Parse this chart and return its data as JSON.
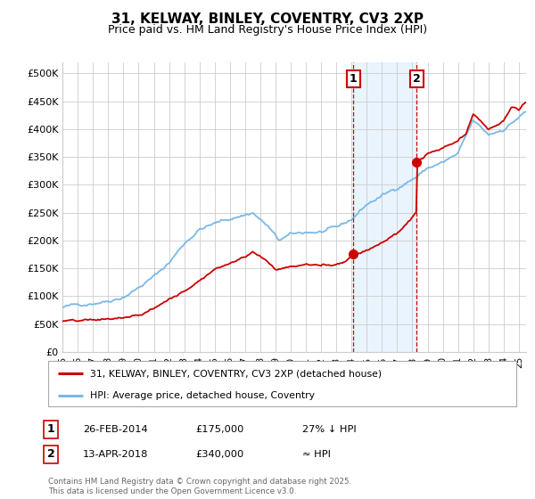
{
  "title": "31, KELWAY, BINLEY, COVENTRY, CV3 2XP",
  "subtitle": "Price paid vs. HM Land Registry's House Price Index (HPI)",
  "ylim": [
    0,
    520000
  ],
  "yticks": [
    0,
    50000,
    100000,
    150000,
    200000,
    250000,
    300000,
    350000,
    400000,
    450000,
    500000
  ],
  "ytick_labels": [
    "£0",
    "£50K",
    "£100K",
    "£150K",
    "£200K",
    "£250K",
    "£300K",
    "£350K",
    "£400K",
    "£450K",
    "£500K"
  ],
  "xlim_start": 1995.0,
  "xlim_end": 2025.5,
  "hpi_color": "#7ab8e8",
  "price_color": "#cc0000",
  "event1_x": 2014.12,
  "event2_x": 2018.28,
  "event1_price": 175000,
  "event2_price": 340000,
  "legend_red_label": "31, KELWAY, BINLEY, COVENTRY, CV3 2XP (detached house)",
  "legend_blue_label": "HPI: Average price, detached house, Coventry",
  "annotation1_label": "1",
  "annotation2_label": "2",
  "table_row1": [
    "1",
    "26-FEB-2014",
    "£175,000",
    "27% ↓ HPI"
  ],
  "table_row2": [
    "2",
    "13-APR-2018",
    "£340,000",
    "≈ HPI"
  ],
  "footer": "Contains HM Land Registry data © Crown copyright and database right 2025.\nThis data is licensed under the Open Government Licence v3.0.",
  "bg_color": "#ffffff",
  "grid_color": "#cccccc",
  "shade_color": "#ddeeff"
}
